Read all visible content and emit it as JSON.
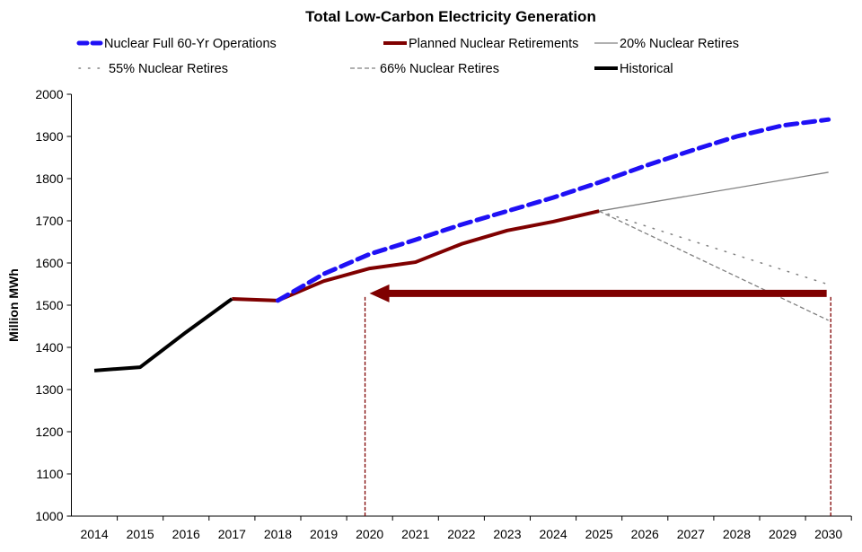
{
  "chart_data": {
    "type": "line",
    "title": "Total Low-Carbon Electricity Generation",
    "xlabel": "",
    "ylabel": "Million MWh",
    "categories": [
      "2014",
      "2015",
      "2016",
      "2017",
      "2018",
      "2019",
      "2020",
      "2021",
      "2022",
      "2023",
      "2024",
      "2025",
      "2026",
      "2027",
      "2028",
      "2029",
      "2030"
    ],
    "ylim": [
      1000,
      2000
    ],
    "yticks": [
      1000,
      1100,
      1200,
      1300,
      1400,
      1500,
      1600,
      1700,
      1800,
      1900,
      2000
    ],
    "grid": false,
    "legend_position": "top",
    "series": [
      {
        "name": "Nuclear Full 60-Yr Operations",
        "color": "#1f10f5",
        "style": "thick-dash",
        "x": [
          "2018",
          "2019",
          "2020",
          "2021",
          "2022",
          "2023",
          "2024",
          "2025",
          "2026",
          "2027",
          "2028",
          "2029",
          "2030"
        ],
        "values": [
          1511,
          1574,
          1621,
          1655,
          1691,
          1723,
          1755,
          1791,
          1830,
          1866,
          1900,
          1926,
          1940
        ]
      },
      {
        "name": "Planned Nuclear Retirements",
        "color": "#7f0000",
        "style": "thick-solid",
        "x": [
          "2017",
          "2018",
          "2019",
          "2020",
          "2021",
          "2022",
          "2023",
          "2024",
          "2025"
        ],
        "values": [
          1515,
          1511,
          1557,
          1587,
          1602,
          1645,
          1677,
          1698,
          1723
        ]
      },
      {
        "name": "20% Nuclear Retires",
        "color": "#808080",
        "style": "thin-solid",
        "x": [
          "2025",
          "2030"
        ],
        "values": [
          1723,
          1815
        ]
      },
      {
        "name": "55% Nuclear Retires",
        "color": "#808080",
        "style": "dotted",
        "x": [
          "2025",
          "2030"
        ],
        "values": [
          1723,
          1549
        ]
      },
      {
        "name": "66% Nuclear Retires",
        "color": "#808080",
        "style": "dashed",
        "x": [
          "2025",
          "2030"
        ],
        "values": [
          1723,
          1464
        ]
      },
      {
        "name": "Historical",
        "color": "#000000",
        "style": "thick-solid",
        "x": [
          "2014",
          "2015",
          "2016",
          "2017"
        ],
        "values": [
          1345,
          1353,
          1436,
          1515
        ]
      }
    ],
    "annotations": {
      "arrow": {
        "color": "#7f0000",
        "y_value": 1528,
        "from_x": "2030",
        "to_x": "2019.9"
      },
      "vertical_markers": {
        "color": "#7f0000",
        "x": [
          "2019.9",
          "2030.05"
        ],
        "style": "dashed"
      }
    }
  }
}
